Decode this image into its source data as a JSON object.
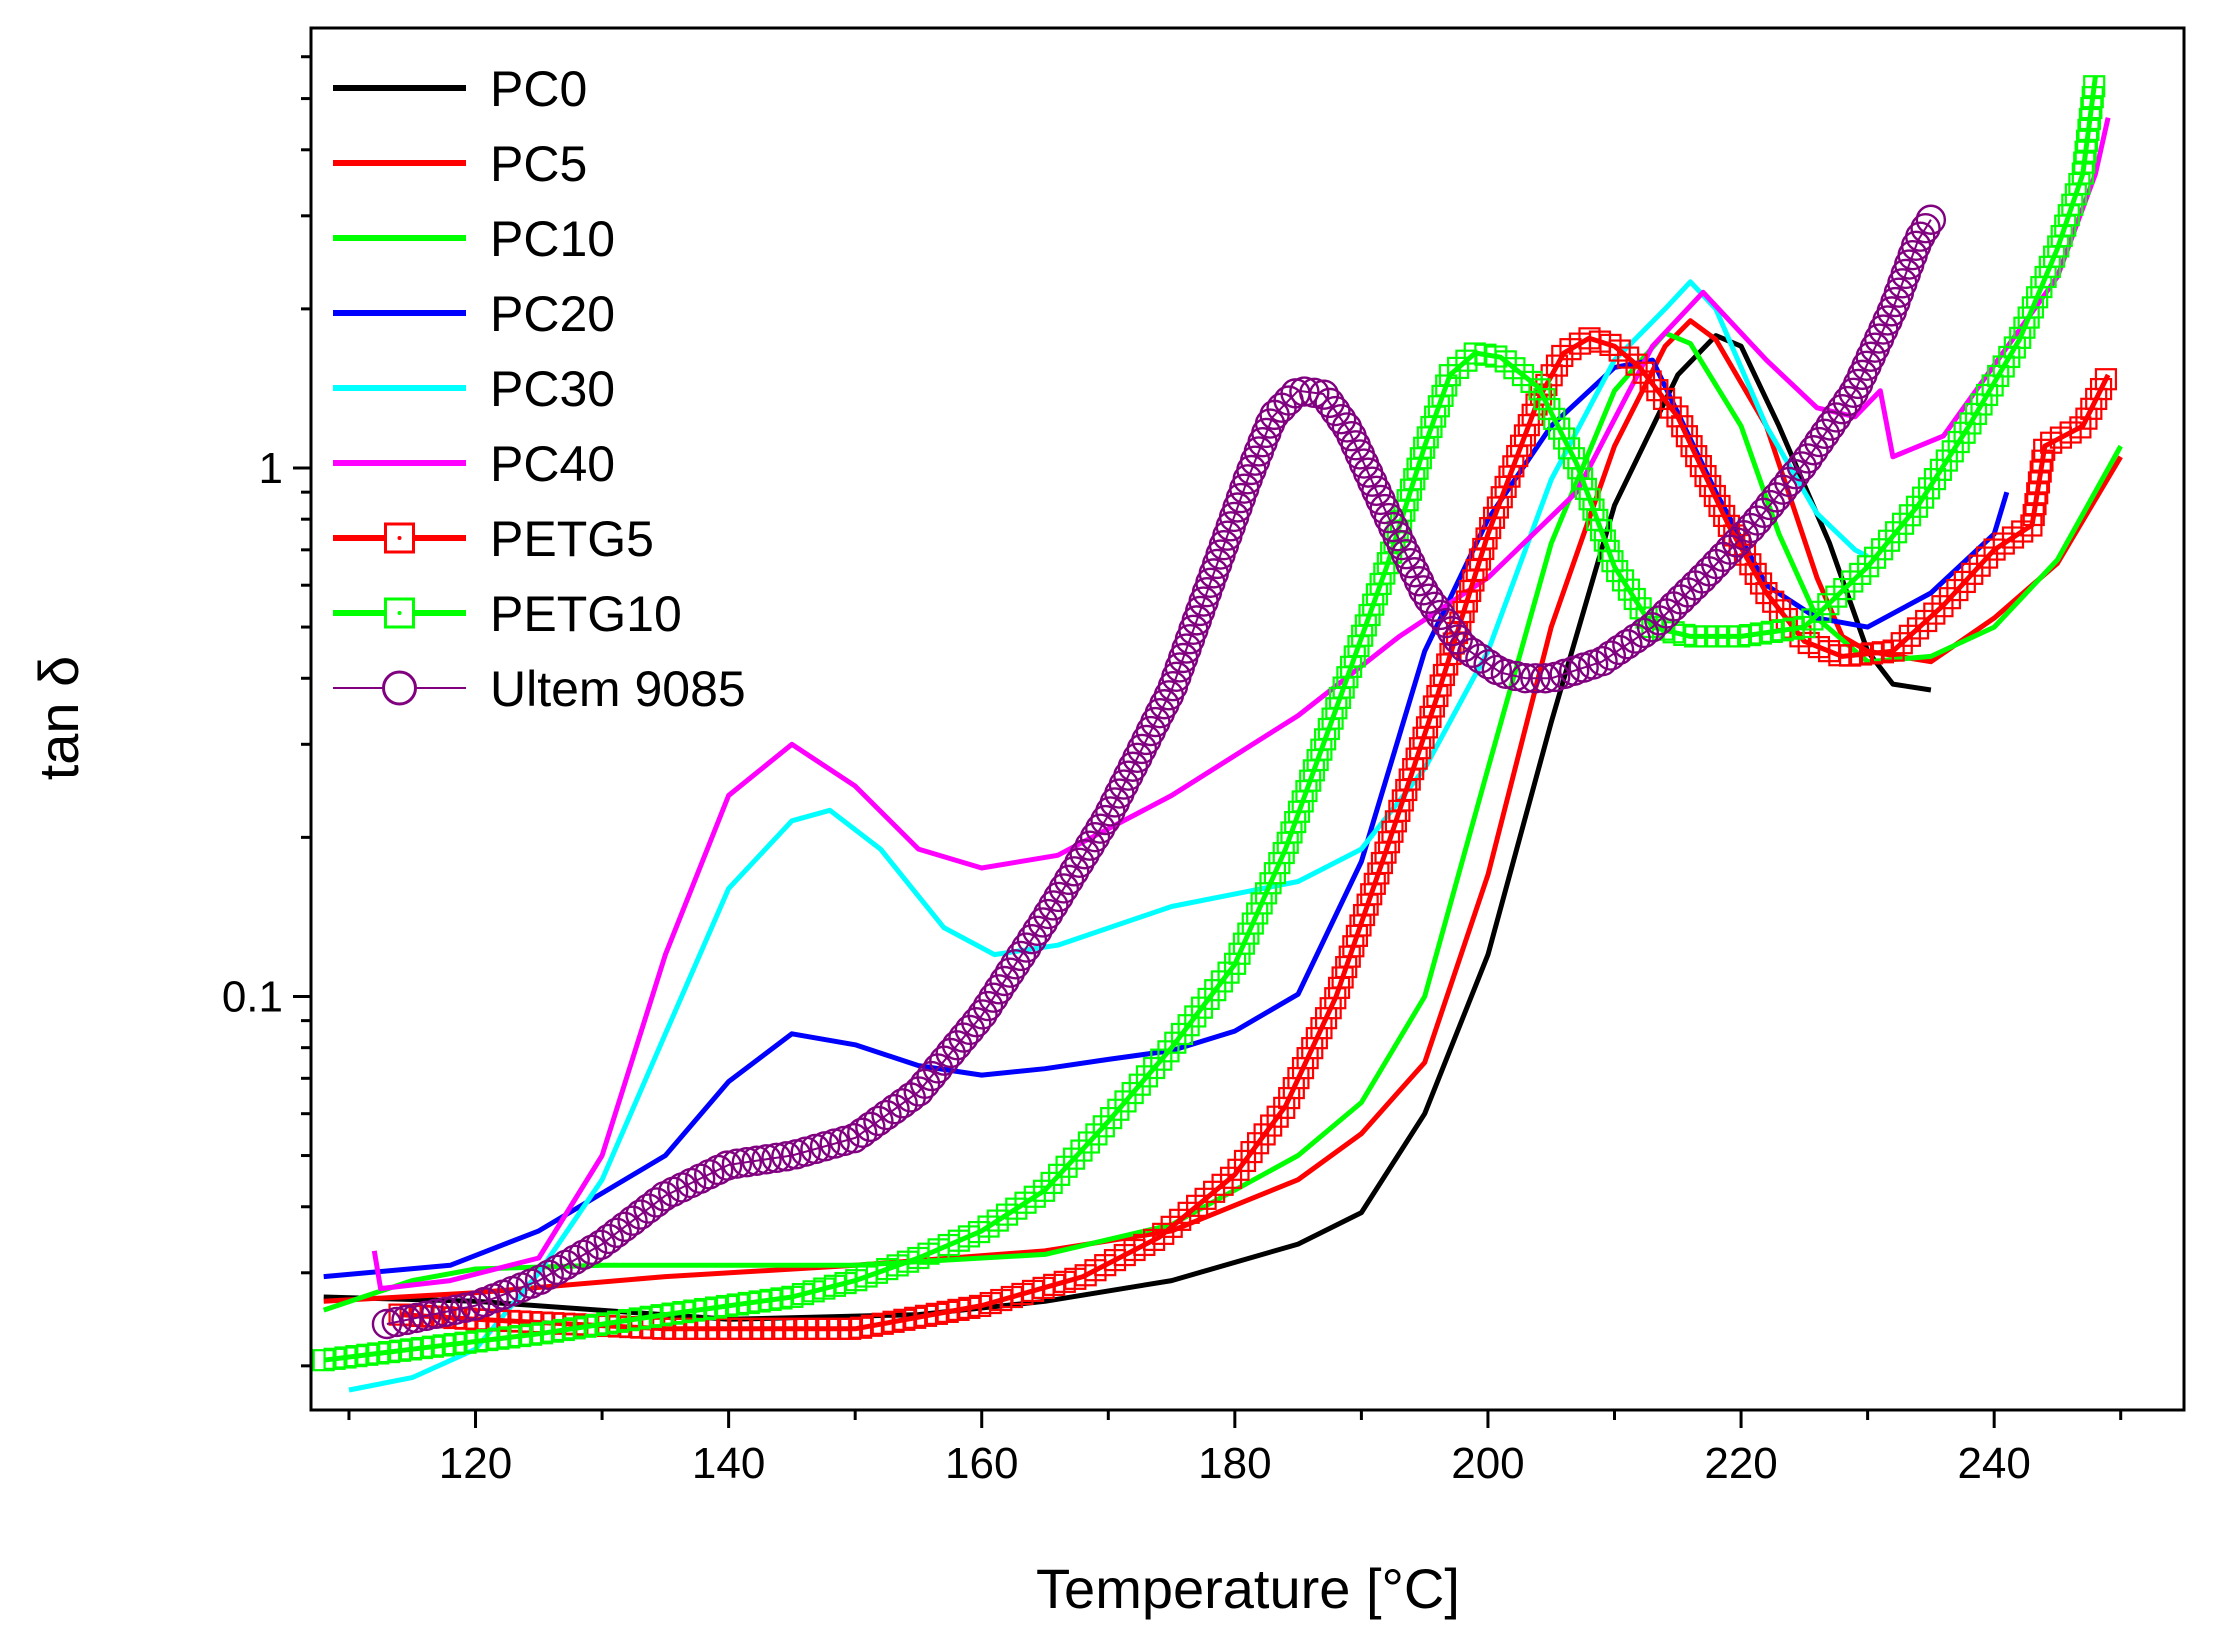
{
  "chart_data": {
    "type": "line",
    "title": "",
    "xlabel": "Temperature [°C]",
    "ylabel": "tan δ",
    "xlim": [
      107,
      255
    ],
    "ylim": [
      0.0165,
      6.8
    ],
    "yscale": "log",
    "x_ticks": [
      120,
      140,
      160,
      180,
      200,
      220,
      240
    ],
    "y_ticks": [
      0.1,
      1
    ],
    "x_tick_labels": [
      "120",
      "140",
      "160",
      "180",
      "200",
      "220",
      "240"
    ],
    "y_tick_labels": [
      "0.1",
      "1"
    ],
    "grid": false,
    "legend_position": "top-left",
    "series": [
      {
        "name": "PC0",
        "color": "#000000",
        "marker": "none",
        "points": [
          [
            108,
            0.027
          ],
          [
            120,
            0.0265
          ],
          [
            140,
            0.0245
          ],
          [
            155,
            0.025
          ],
          [
            165,
            0.0265
          ],
          [
            175,
            0.029
          ],
          [
            185,
            0.034
          ],
          [
            190,
            0.039
          ],
          [
            195,
            0.06
          ],
          [
            200,
            0.12
          ],
          [
            205,
            0.33
          ],
          [
            210,
            0.85
          ],
          [
            215,
            1.5
          ],
          [
            218,
            1.78
          ],
          [
            220,
            1.7
          ],
          [
            223,
            1.2
          ],
          [
            227,
            0.72
          ],
          [
            230,
            0.45
          ],
          [
            232,
            0.39
          ],
          [
            235,
            0.38
          ]
        ]
      },
      {
        "name": "PC5",
        "color": "#ff0000",
        "marker": "none",
        "points": [
          [
            108,
            0.0265
          ],
          [
            120,
            0.0275
          ],
          [
            135,
            0.0295
          ],
          [
            150,
            0.031
          ],
          [
            165,
            0.033
          ],
          [
            175,
            0.036
          ],
          [
            185,
            0.045
          ],
          [
            190,
            0.055
          ],
          [
            195,
            0.075
          ],
          [
            200,
            0.17
          ],
          [
            205,
            0.5
          ],
          [
            210,
            1.1
          ],
          [
            214,
            1.7
          ],
          [
            216,
            1.9
          ],
          [
            218,
            1.75
          ],
          [
            222,
            1.2
          ],
          [
            226,
            0.62
          ],
          [
            228,
            0.48
          ],
          [
            230,
            0.45
          ],
          [
            235,
            0.43
          ],
          [
            240,
            0.52
          ],
          [
            245,
            0.66
          ],
          [
            250,
            1.05
          ]
        ]
      },
      {
        "name": "PC10",
        "color": "#00ff00",
        "marker": "none",
        "points": [
          [
            108,
            0.0255
          ],
          [
            115,
            0.029
          ],
          [
            120,
            0.0305
          ],
          [
            130,
            0.031
          ],
          [
            150,
            0.031
          ],
          [
            165,
            0.0325
          ],
          [
            175,
            0.037
          ],
          [
            185,
            0.05
          ],
          [
            190,
            0.063
          ],
          [
            195,
            0.1
          ],
          [
            200,
            0.27
          ],
          [
            205,
            0.72
          ],
          [
            210,
            1.4
          ],
          [
            214,
            1.8
          ],
          [
            216,
            1.72
          ],
          [
            220,
            1.2
          ],
          [
            223,
            0.75
          ],
          [
            226,
            0.52
          ],
          [
            230,
            0.43
          ],
          [
            235,
            0.44
          ],
          [
            240,
            0.5
          ],
          [
            245,
            0.67
          ],
          [
            250,
            1.1
          ]
        ]
      },
      {
        "name": "PC20",
        "color": "#0000ff",
        "marker": "none",
        "points": [
          [
            108,
            0.0295
          ],
          [
            118,
            0.031
          ],
          [
            125,
            0.036
          ],
          [
            135,
            0.05
          ],
          [
            140,
            0.069
          ],
          [
            145,
            0.085
          ],
          [
            150,
            0.081
          ],
          [
            155,
            0.074
          ],
          [
            160,
            0.071
          ],
          [
            165,
            0.073
          ],
          [
            170,
            0.076
          ],
          [
            175,
            0.079
          ],
          [
            180,
            0.086
          ],
          [
            185,
            0.101
          ],
          [
            190,
            0.18
          ],
          [
            195,
            0.45
          ],
          [
            200,
            0.8
          ],
          [
            205,
            1.2
          ],
          [
            210,
            1.55
          ],
          [
            213,
            1.6
          ],
          [
            218,
            0.9
          ],
          [
            222,
            0.6
          ],
          [
            226,
            0.52
          ],
          [
            230,
            0.5
          ],
          [
            235,
            0.58
          ],
          [
            240,
            0.75
          ],
          [
            241,
            0.9
          ]
        ]
      },
      {
        "name": "PC30",
        "color": "#00ffff",
        "marker": "none",
        "points": [
          [
            110,
            0.018
          ],
          [
            115,
            0.019
          ],
          [
            120,
            0.0215
          ],
          [
            125,
            0.03
          ],
          [
            130,
            0.045
          ],
          [
            135,
            0.085
          ],
          [
            140,
            0.16
          ],
          [
            145,
            0.215
          ],
          [
            148,
            0.225
          ],
          [
            152,
            0.19
          ],
          [
            157,
            0.135
          ],
          [
            161,
            0.12
          ],
          [
            166,
            0.125
          ],
          [
            175,
            0.148
          ],
          [
            185,
            0.165
          ],
          [
            190,
            0.19
          ],
          [
            195,
            0.27
          ],
          [
            200,
            0.45
          ],
          [
            205,
            0.95
          ],
          [
            210,
            1.6
          ],
          [
            214,
            2.0
          ],
          [
            216,
            2.25
          ],
          [
            218,
            2.0
          ],
          [
            222,
            1.2
          ],
          [
            226,
            0.82
          ],
          [
            229,
            0.7
          ],
          [
            230,
            0.68
          ]
        ]
      },
      {
        "name": "PC40",
        "color": "#ff00ff",
        "marker": "none",
        "points": [
          [
            112,
            0.033
          ],
          [
            112.5,
            0.028
          ],
          [
            118,
            0.029
          ],
          [
            125,
            0.032
          ],
          [
            130,
            0.05
          ],
          [
            135,
            0.12
          ],
          [
            140,
            0.24
          ],
          [
            145,
            0.3
          ],
          [
            150,
            0.25
          ],
          [
            155,
            0.19
          ],
          [
            160,
            0.175
          ],
          [
            166,
            0.185
          ],
          [
            175,
            0.24
          ],
          [
            185,
            0.34
          ],
          [
            193,
            0.48
          ],
          [
            200,
            0.62
          ],
          [
            207,
            0.9
          ],
          [
            213,
            1.7
          ],
          [
            217,
            2.15
          ],
          [
            222,
            1.6
          ],
          [
            226,
            1.3
          ],
          [
            229,
            1.25
          ],
          [
            231,
            1.4
          ],
          [
            232,
            1.05
          ],
          [
            236,
            1.15
          ],
          [
            245,
            2.3
          ],
          [
            248,
            3.6
          ],
          [
            249,
            4.6
          ]
        ]
      },
      {
        "name": "PETG5",
        "color": "#ff0000",
        "marker": "square",
        "points": [
          [
            114,
            0.025
          ],
          [
            120,
            0.0245
          ],
          [
            135,
            0.0235
          ],
          [
            150,
            0.0235
          ],
          [
            160,
            0.026
          ],
          [
            168,
            0.0295
          ],
          [
            174,
            0.035
          ],
          [
            180,
            0.046
          ],
          [
            184,
            0.062
          ],
          [
            188,
            0.1
          ],
          [
            192,
            0.19
          ],
          [
            196,
            0.37
          ],
          [
            200,
            0.75
          ],
          [
            204,
            1.35
          ],
          [
            206,
            1.65
          ],
          [
            208,
            1.76
          ],
          [
            210,
            1.7
          ],
          [
            212,
            1.55
          ],
          [
            215,
            1.25
          ],
          [
            219,
            0.78
          ],
          [
            222,
            0.58
          ],
          [
            225,
            0.47
          ],
          [
            228,
            0.44
          ],
          [
            232,
            0.45
          ],
          [
            236,
            0.55
          ],
          [
            240,
            0.7
          ],
          [
            243,
            0.78
          ],
          [
            244,
            1.1
          ],
          [
            247,
            1.2
          ],
          [
            249,
            1.5
          ]
        ]
      },
      {
        "name": "PETG10",
        "color": "#00ff00",
        "marker": "square",
        "points": [
          [
            108,
            0.0205
          ],
          [
            115,
            0.0215
          ],
          [
            125,
            0.023
          ],
          [
            135,
            0.025
          ],
          [
            145,
            0.027
          ],
          [
            150,
            0.029
          ],
          [
            155,
            0.032
          ],
          [
            160,
            0.036
          ],
          [
            165,
            0.043
          ],
          [
            170,
            0.058
          ],
          [
            175,
            0.08
          ],
          [
            180,
            0.115
          ],
          [
            184,
            0.19
          ],
          [
            188,
            0.35
          ],
          [
            192,
            0.65
          ],
          [
            195,
            1.1
          ],
          [
            197,
            1.5
          ],
          [
            199,
            1.65
          ],
          [
            201,
            1.62
          ],
          [
            204,
            1.42
          ],
          [
            207,
            1.02
          ],
          [
            210,
            0.65
          ],
          [
            213,
            0.5
          ],
          [
            216,
            0.48
          ],
          [
            220,
            0.48
          ],
          [
            225,
            0.5
          ],
          [
            230,
            0.65
          ],
          [
            234,
            0.85
          ],
          [
            238,
            1.2
          ],
          [
            242,
            1.75
          ],
          [
            245,
            2.6
          ],
          [
            247,
            3.6
          ],
          [
            248,
            5.5
          ]
        ]
      },
      {
        "name": "Ultem 9085",
        "color": "#800080",
        "marker": "circle",
        "points": [
          [
            113,
            0.024
          ],
          [
            120,
            0.026
          ],
          [
            125,
            0.029
          ],
          [
            130,
            0.034
          ],
          [
            135,
            0.042
          ],
          [
            140,
            0.048
          ],
          [
            145,
            0.05
          ],
          [
            150,
            0.054
          ],
          [
            155,
            0.066
          ],
          [
            160,
            0.092
          ],
          [
            165,
            0.14
          ],
          [
            170,
            0.22
          ],
          [
            175,
            0.38
          ],
          [
            178,
            0.6
          ],
          [
            181,
            0.95
          ],
          [
            183,
            1.25
          ],
          [
            185,
            1.4
          ],
          [
            187,
            1.38
          ],
          [
            189,
            1.18
          ],
          [
            192,
            0.82
          ],
          [
            195,
            0.58
          ],
          [
            198,
            0.46
          ],
          [
            201,
            0.41
          ],
          [
            203,
            0.4
          ],
          [
            205,
            0.4
          ],
          [
            209,
            0.43
          ],
          [
            213,
            0.5
          ],
          [
            217,
            0.62
          ],
          [
            221,
            0.78
          ],
          [
            225,
            1.02
          ],
          [
            229,
            1.4
          ],
          [
            232,
            2.0
          ],
          [
            234,
            2.7
          ],
          [
            235,
            2.95
          ]
        ]
      }
    ]
  }
}
